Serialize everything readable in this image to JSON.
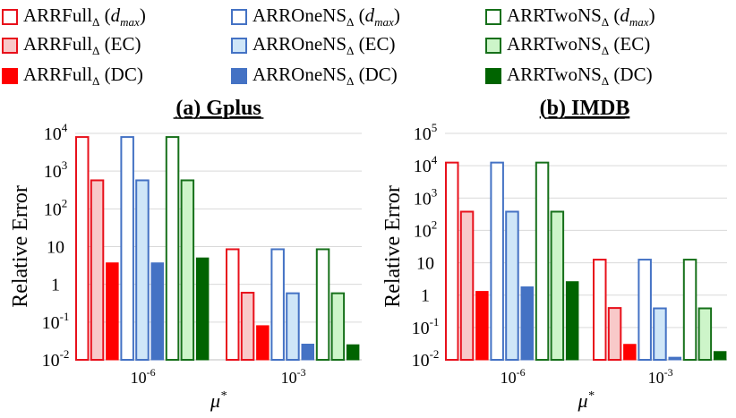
{
  "legend": {
    "items": [
      {
        "base": "ARRFull",
        "sub": "Δ",
        "mode": "d",
        "suffix_open": " (",
        "suffix_close": ")",
        "var": "d",
        "var_sub": "max",
        "style": "outline",
        "color": "#e8101b",
        "fill": "#ffffff"
      },
      {
        "base": "ARROneNS",
        "sub": "Δ",
        "mode": "d",
        "suffix_open": " (",
        "suffix_close": ")",
        "var": "d",
        "var_sub": "max",
        "style": "outline",
        "color": "#4472c4",
        "fill": "#ffffff"
      },
      {
        "base": "ARRTwoNS",
        "sub": "Δ",
        "mode": "d",
        "suffix_open": " (",
        "suffix_close": ")",
        "var": "d",
        "var_sub": "max",
        "style": "outline",
        "color": "#16701a",
        "fill": "#ffffff"
      },
      {
        "base": "ARRFull",
        "sub": "Δ",
        "mode": "t",
        "label": " (EC)",
        "style": "light",
        "color": "#e8101b",
        "fill": "#f8c9c9"
      },
      {
        "base": "ARROneNS",
        "sub": "Δ",
        "mode": "t",
        "label": " (EC)",
        "style": "light",
        "color": "#4472c4",
        "fill": "#cfe6f8"
      },
      {
        "base": "ARRTwoNS",
        "sub": "Δ",
        "mode": "t",
        "label": " (EC)",
        "style": "light",
        "color": "#16701a",
        "fill": "#cdf5c9"
      },
      {
        "base": "ARRFull",
        "sub": "Δ",
        "mode": "t",
        "label": " (DC)",
        "style": "solid",
        "color": "#ff0000",
        "fill": "#ff0000"
      },
      {
        "base": "ARROneNS",
        "sub": "Δ",
        "mode": "t",
        "label": " (DC)",
        "style": "solid",
        "color": "#4472c4",
        "fill": "#4472c4"
      },
      {
        "base": "ARRTwoNS",
        "sub": "Δ",
        "mode": "t",
        "label": " (DC)",
        "style": "solid",
        "color": "#006400",
        "fill": "#006400"
      }
    ]
  },
  "chart_data": [
    {
      "type": "bar",
      "title": "(a) Gplus",
      "ylabel": "Relative Error",
      "xlabel": "μ*",
      "yscale": "log",
      "ylim_exp": [
        -2,
        4
      ],
      "ytick_labels": [
        {
          "base": "10",
          "exp": "-2"
        },
        {
          "base": "10",
          "exp": "-1"
        },
        {
          "base": "1",
          "exp": ""
        },
        {
          "base": "10",
          "exp": ""
        },
        {
          "base": "10",
          "exp": "2"
        },
        {
          "base": "10",
          "exp": "3"
        },
        {
          "base": "10",
          "exp": "4"
        }
      ],
      "categories": [
        {
          "base": "10",
          "exp": "-6"
        },
        {
          "base": "10",
          "exp": "-3"
        }
      ],
      "series": [
        {
          "name": "ARRFull_Δ (d_max)",
          "values": [
            8000,
            8.5
          ]
        },
        {
          "name": "ARRFull_Δ (EC)",
          "values": [
            570,
            0.6
          ]
        },
        {
          "name": "ARRFull_Δ (DC)",
          "values": [
            3.7,
            0.08
          ]
        },
        {
          "name": "ARROneNS_Δ (d_max)",
          "values": [
            8000,
            8.5
          ]
        },
        {
          "name": "ARROneNS_Δ (EC)",
          "values": [
            570,
            0.58
          ]
        },
        {
          "name": "ARROneNS_Δ (DC)",
          "values": [
            3.7,
            0.026
          ]
        },
        {
          "name": "ARRTwoNS_Δ (d_max)",
          "values": [
            8000,
            8.5
          ]
        },
        {
          "name": "ARRTwoNS_Δ (EC)",
          "values": [
            570,
            0.58
          ]
        },
        {
          "name": "ARRTwoNS_Δ (DC)",
          "values": [
            5.0,
            0.025
          ]
        }
      ]
    },
    {
      "type": "bar",
      "title": "(b) IMDB",
      "ylabel": "Relative Error",
      "xlabel": "μ*",
      "yscale": "log",
      "ylim_exp": [
        -2,
        5
      ],
      "ytick_labels": [
        {
          "base": "10",
          "exp": "-2"
        },
        {
          "base": "10",
          "exp": "-1"
        },
        {
          "base": "1",
          "exp": ""
        },
        {
          "base": "10",
          "exp": ""
        },
        {
          "base": "10",
          "exp": "2"
        },
        {
          "base": "10",
          "exp": "3"
        },
        {
          "base": "10",
          "exp": "4"
        },
        {
          "base": "10",
          "exp": "5"
        }
      ],
      "categories": [
        {
          "base": "10",
          "exp": "-6"
        },
        {
          "base": "10",
          "exp": "-3"
        }
      ],
      "series": [
        {
          "name": "ARRFull_Δ (d_max)",
          "values": [
            12500,
            12.5
          ]
        },
        {
          "name": "ARRFull_Δ (EC)",
          "values": [
            380,
            0.4
          ]
        },
        {
          "name": "ARRFull_Δ (DC)",
          "values": [
            1.3,
            0.03
          ]
        },
        {
          "name": "ARROneNS_Δ (d_max)",
          "values": [
            12500,
            12.5
          ]
        },
        {
          "name": "ARROneNS_Δ (EC)",
          "values": [
            380,
            0.39
          ]
        },
        {
          "name": "ARROneNS_Δ (DC)",
          "values": [
            1.8,
            0.012
          ]
        },
        {
          "name": "ARRTwoNS_Δ (d_max)",
          "values": [
            12500,
            12.5
          ]
        },
        {
          "name": "ARRTwoNS_Δ (EC)",
          "values": [
            380,
            0.39
          ]
        },
        {
          "name": "ARRTwoNS_Δ (DC)",
          "values": [
            2.6,
            0.018
          ]
        }
      ]
    }
  ]
}
